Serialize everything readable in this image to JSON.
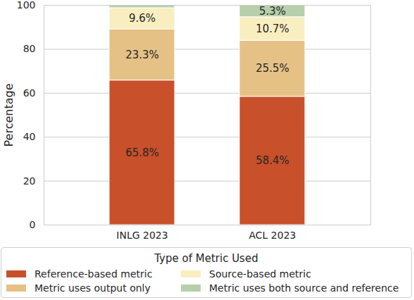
{
  "chart_data": {
    "type": "bar",
    "stacked": true,
    "categories": [
      "INLG 2023",
      "ACL 2023"
    ],
    "ylabel": "Percentage",
    "legend_title": "Type of Metric Used",
    "legend": "bottom",
    "ylim": [
      0,
      100
    ],
    "yticks": [
      0,
      20,
      40,
      60,
      80,
      100
    ],
    "grid": true,
    "data_labels": true,
    "series": [
      {
        "name": "Reference-based metric",
        "color": "#c8502a",
        "values": [
          65.8,
          58.4
        ],
        "value_labels": [
          "65.8%",
          "58.4%"
        ]
      },
      {
        "name": "Metric uses output only",
        "color": "#e5c185",
        "values": [
          23.3,
          25.5
        ],
        "value_labels": [
          "23.3%",
          "25.5%"
        ]
      },
      {
        "name": "Source-based metric",
        "color": "#f9eec0",
        "values": [
          9.6,
          10.7
        ],
        "value_labels": [
          "9.6%",
          "10.7%"
        ]
      },
      {
        "name": "Metric uses both source and reference",
        "color": "#b7cfaa",
        "values": [
          1.3,
          5.3
        ],
        "value_labels": [
          null,
          "5.3%"
        ]
      }
    ]
  }
}
